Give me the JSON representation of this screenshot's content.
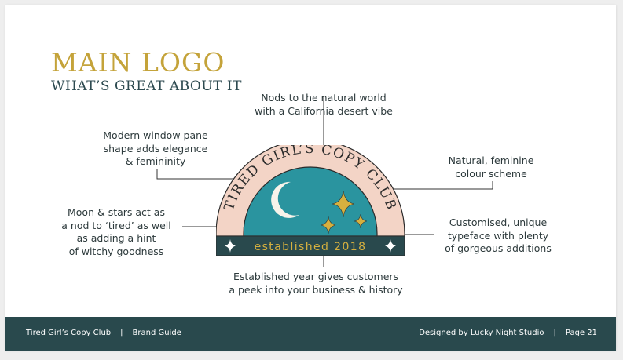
{
  "heading": {
    "title": "MAIN LOGO",
    "subtitle": "WHAT’S GREAT ABOUT IT"
  },
  "logo": {
    "arc_text": "TIRED GIRL’S COPY CLUB",
    "established": "established 2018"
  },
  "notes": {
    "natural_world": [
      "Nods to the natural world",
      "with a California desert vibe"
    ],
    "window_pane": [
      "Modern window pane",
      "shape adds elegance",
      "& femininity"
    ],
    "colour": [
      "Natural, feminine",
      "colour scheme"
    ],
    "moon": [
      "Moon & stars act as",
      "a nod to ‘tired’ as well",
      "as adding a hint",
      "of witchy goodness"
    ],
    "typeface": [
      "Customised, unique",
      "typeface with plenty",
      "of gorgeous additions"
    ],
    "established": [
      "Established year gives customers",
      "a peek into your business & history"
    ]
  },
  "footer": {
    "brand": "Tired Girl’s Copy Club",
    "separator": "|",
    "doc": "Brand Guide",
    "designer": "Designed by Lucky Night Studio",
    "page": "Page 21"
  },
  "colors": {
    "gold": "#c4a33a",
    "teal": "#2a949f",
    "dark_teal": "#29494d",
    "blush": "#f3d4c6",
    "outline": "#2b2b2b"
  }
}
